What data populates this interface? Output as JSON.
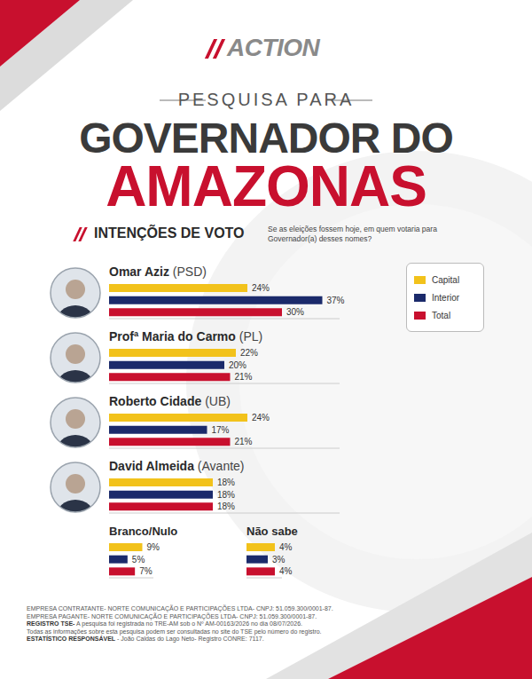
{
  "header": {
    "logo": "ACTION",
    "kicker": "PESQUISA PARA",
    "title_line1": "GOVERNADOR DO",
    "title_line2": "AMAZONAS",
    "section": "INTENÇÕES DE VOTO",
    "question": "Se as eleições fossem hoje, em quem votaria para Governador(a) desses nomes?"
  },
  "chart_data": [
    {
      "type": "bar",
      "orientation": "horizontal",
      "categories": [
        "Omar Aziz",
        "Profª Maria do Carmo",
        "Roberto Cidade",
        "David Almeida"
      ],
      "parties": [
        "(PSD)",
        "(PL)",
        "(UB)",
        "(Avante)"
      ],
      "series": [
        {
          "name": "Capital",
          "color": "#f2c21b",
          "values": [
            24,
            22,
            24,
            18
          ],
          "value_labels": [
            "24%",
            "22%",
            "24%",
            "18%"
          ]
        },
        {
          "name": "Interior",
          "color": "#1b2a6b",
          "values": [
            37,
            20,
            17,
            18
          ],
          "value_labels": [
            "37%",
            "20%",
            "17%",
            "18%"
          ]
        },
        {
          "name": "Total",
          "color": "#c8102e",
          "values": [
            30,
            21,
            21,
            18
          ],
          "value_labels": [
            "30%",
            "21%",
            "21%",
            "18%"
          ]
        }
      ],
      "xlim": [
        0,
        40
      ],
      "legend": "top-right",
      "data_labels": true,
      "tick_labels": false
    },
    {
      "type": "bar",
      "orientation": "horizontal",
      "categories": [
        "Branco/Nulo"
      ],
      "series": [
        {
          "color": "#f2c21b",
          "values": [
            9
          ],
          "value_labels": [
            "9%"
          ]
        },
        {
          "color": "#1b2a6b",
          "values": [
            5
          ],
          "value_labels": [
            "5%"
          ]
        },
        {
          "color": "#c8102e",
          "values": [
            7
          ],
          "value_labels": [
            "7%"
          ]
        }
      ],
      "xlim": [
        0,
        12
      ],
      "data_labels": true,
      "tick_labels": false
    },
    {
      "type": "bar",
      "orientation": "horizontal",
      "categories": [
        "Não sabe"
      ],
      "series": [
        {
          "color": "#f2c21b",
          "values": [
            4
          ],
          "value_labels": [
            "4%"
          ]
        },
        {
          "color": "#1b2a6b",
          "values": [
            3
          ],
          "value_labels": [
            "3%"
          ]
        },
        {
          "color": "#c8102e",
          "values": [
            4
          ],
          "value_labels": [
            "4%"
          ]
        }
      ],
      "xlim": [
        0,
        5
      ],
      "data_labels": true,
      "tick_labels": false
    }
  ],
  "footer": [
    {
      "bold": "",
      "text": "EMPRESA CONTRATANTE- NORTE COMUNICAÇÃO E PARTICIPAÇÕES LTDA- CNPJ: 51.059.300/0001-87."
    },
    {
      "bold": "",
      "text": "EMPRESA PAGANTE- NORTE COMUNICAÇÃO E PARTICIPAÇÕES LTDA- CNPJ: 51.059.300/0001-87."
    },
    {
      "bold": "REGISTRO TSE-",
      "text": " A pesquisa foi registrada no TRE-AM sob o Nº AM-00163/2026 no dia 08/07/2026."
    },
    {
      "bold": "",
      "text": "Todas as informações sobre esta pesquisa podem ser consultadas no site do TSE pelo número do registro."
    },
    {
      "bold": "ESTATÍSTICO RESPONSÁVEL",
      "text": " - João Caldas do Lago Neto- Registro CONRE: 7117."
    }
  ]
}
